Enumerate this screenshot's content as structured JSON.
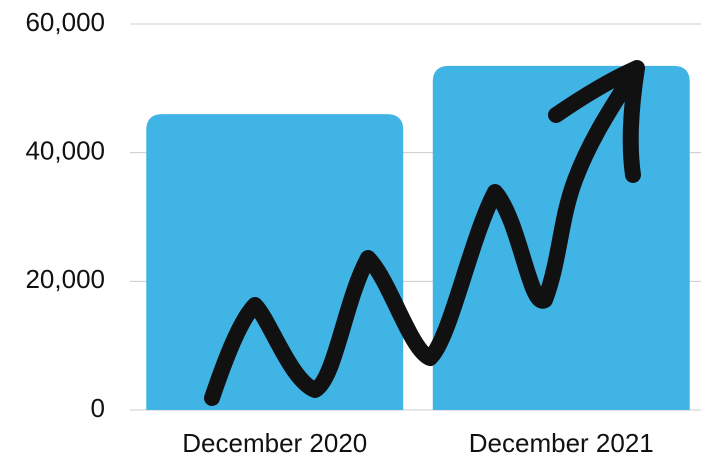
{
  "chart_data": {
    "type": "bar",
    "categories": [
      "December 2020",
      "December 2021"
    ],
    "values": [
      46000,
      53500
    ],
    "color": "#41b4e6",
    "ylim": [
      0,
      60000
    ],
    "yticks": [
      0,
      {
        "value": 20000,
        "label": "20,000"
      },
      {
        "value": 40000,
        "label": "40,000"
      },
      {
        "value": 60000,
        "label": "60,000"
      }
    ],
    "grid": true
  }
}
